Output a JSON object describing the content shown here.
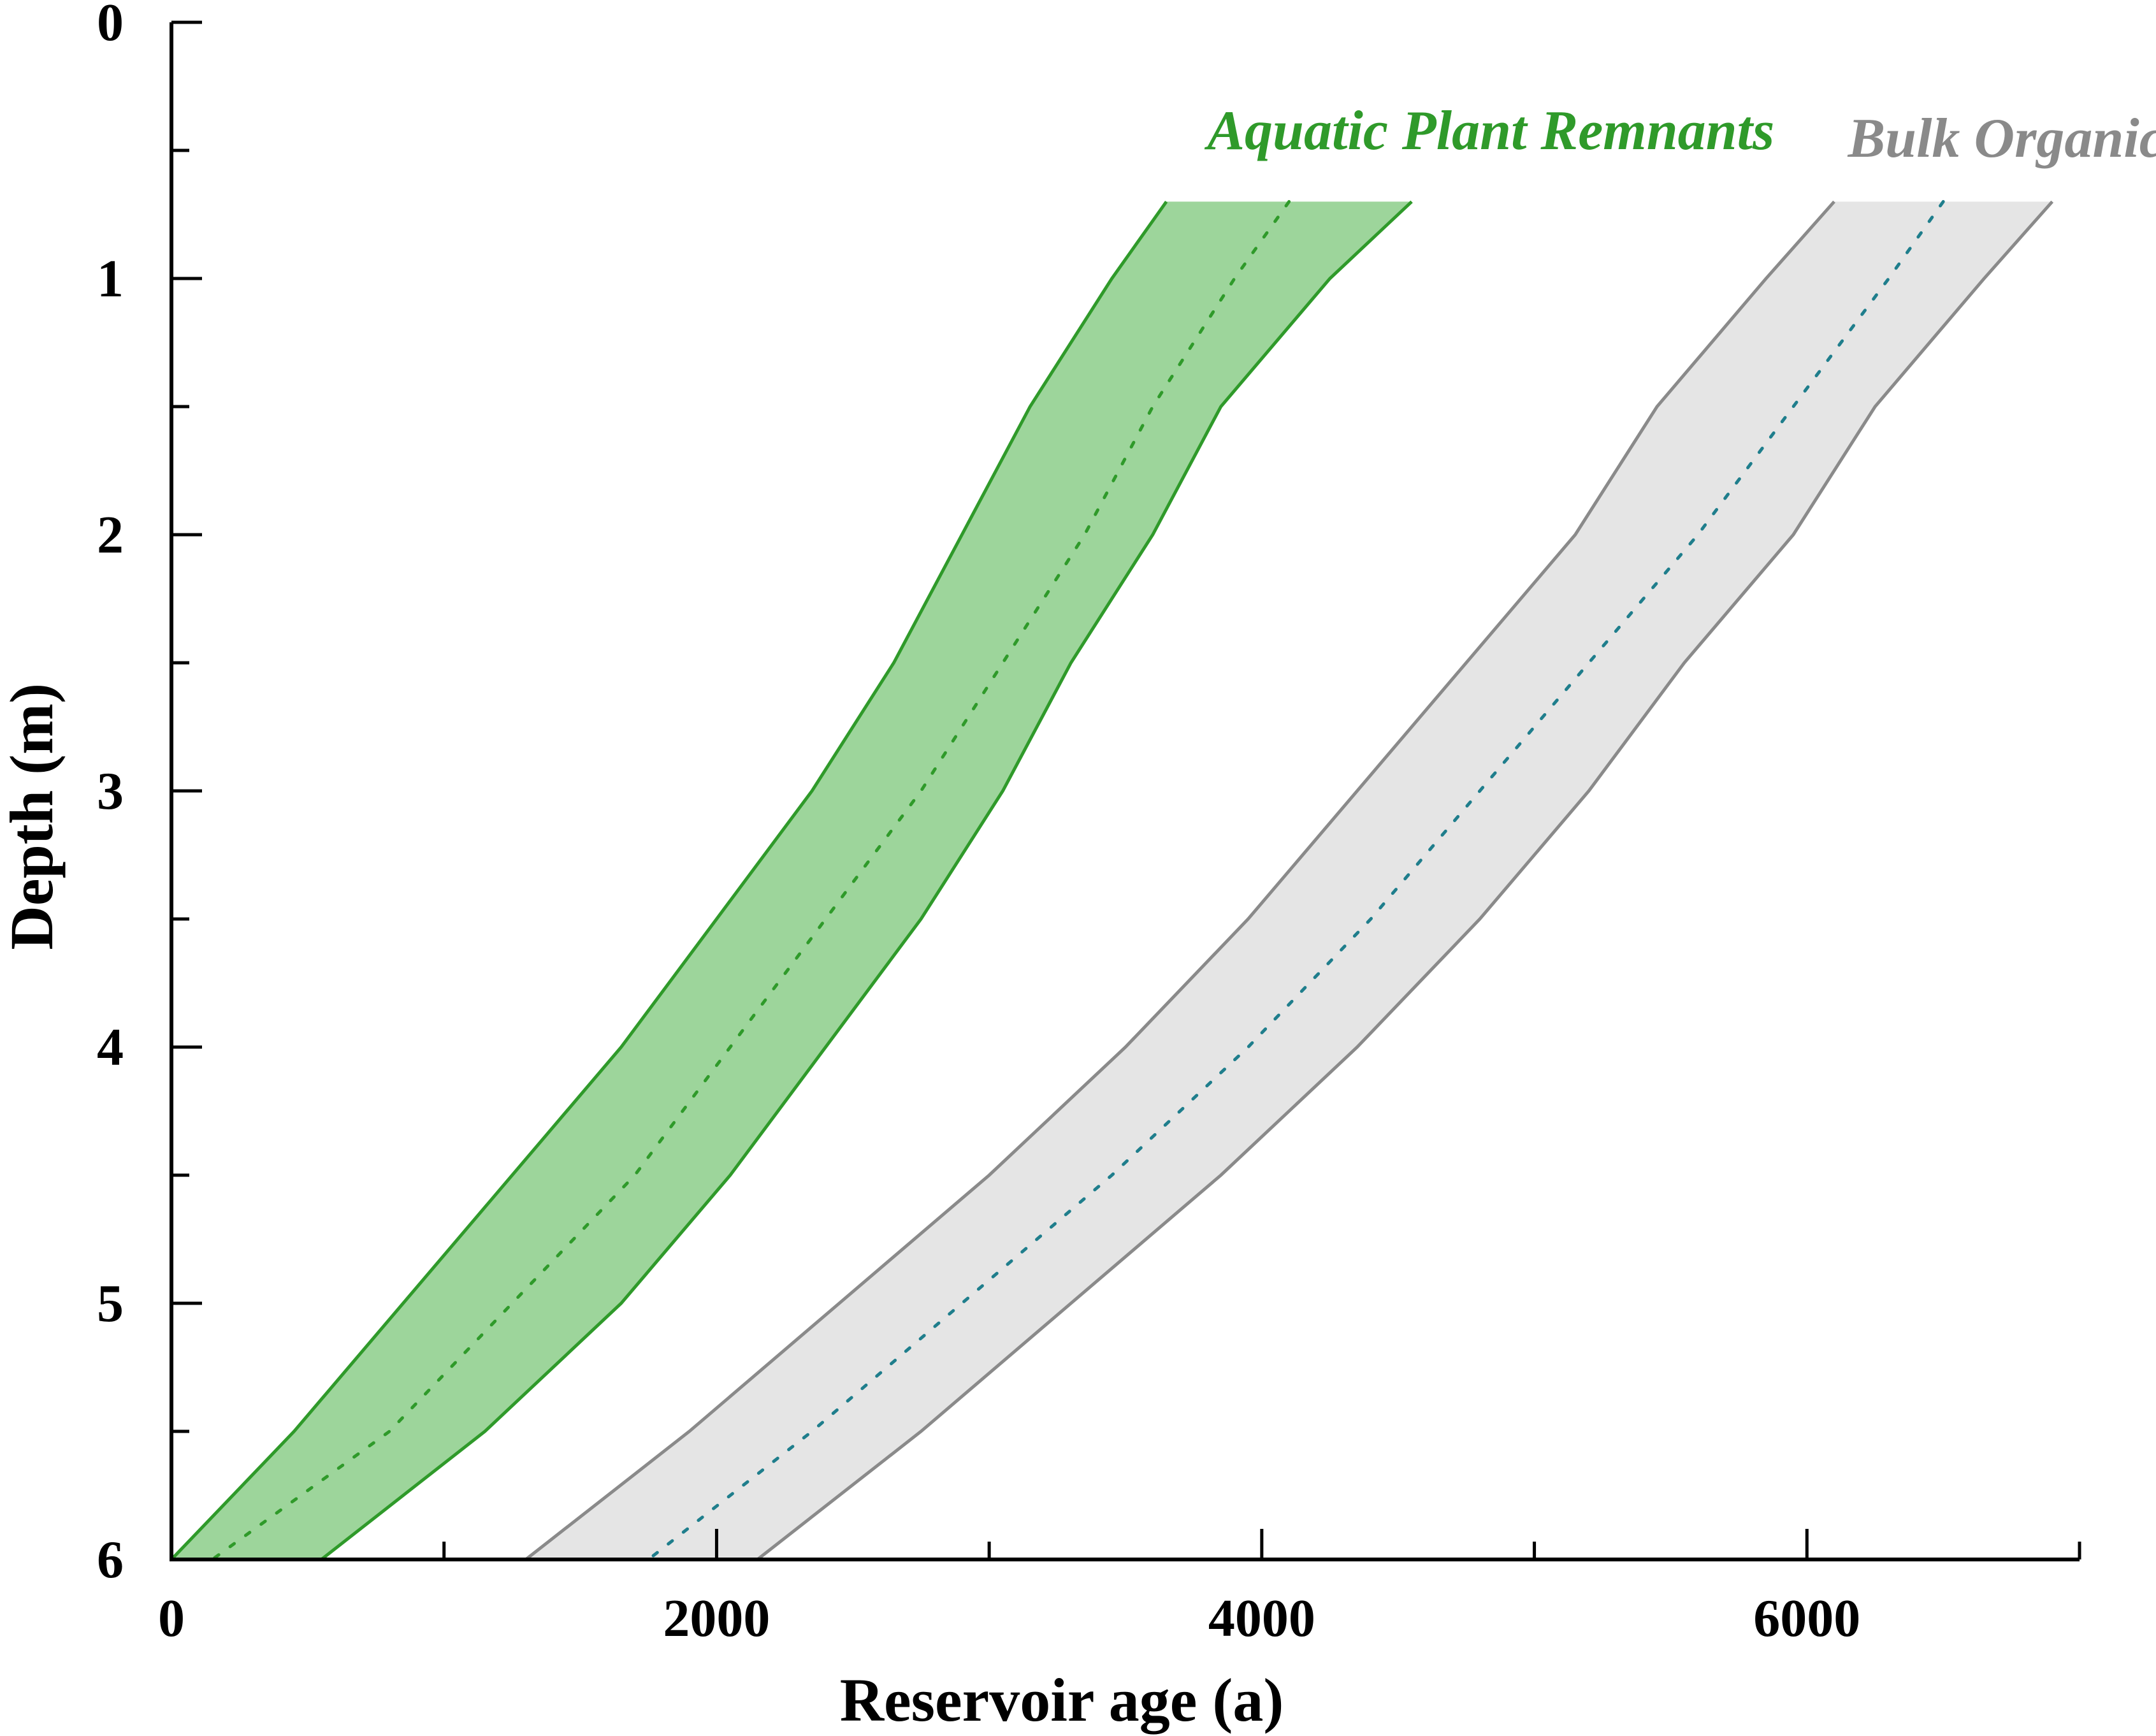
{
  "chart_data": {
    "type": "area",
    "xlabel": "Reservoir age (a)",
    "ylabel": "Depth (m)",
    "xlim": [
      0,
      7000
    ],
    "ylim": [
      0,
      6
    ],
    "y_inverted": true,
    "xticks": [
      0,
      2000,
      4000,
      6000
    ],
    "yticks": [
      0,
      1,
      2,
      3,
      4,
      5,
      6
    ],
    "series": [
      {
        "name": "Aquatic Plant Remnants",
        "fill": "#9dd59b",
        "line": "#2f9a2a",
        "mid": "#2f9a2a",
        "label_pos": [
          3800,
          0.42
        ],
        "depth": [
          0.7,
          1.0,
          1.5,
          2.0,
          2.5,
          3.0,
          3.5,
          4.0,
          4.5,
          5.0,
          5.5,
          6.0
        ],
        "lower": [
          3650,
          3450,
          3150,
          2900,
          2650,
          2350,
          2000,
          1650,
          1250,
          850,
          450,
          0
        ],
        "median": [
          4100,
          3900,
          3600,
          3350,
          3050,
          2750,
          2400,
          2050,
          1700,
          1250,
          800,
          150
        ],
        "upper": [
          4550,
          4250,
          3850,
          3600,
          3300,
          3050,
          2750,
          2400,
          2050,
          1650,
          1150,
          550
        ]
      },
      {
        "name": "Bulk Organic Matter",
        "fill": "#e5e5e5",
        "line": "#8a8a8a",
        "mid": "#1f7e8c",
        "label_pos": [
          6150,
          0.45
        ],
        "depth": [
          0.7,
          1.0,
          1.5,
          2.0,
          2.5,
          3.0,
          3.5,
          4.0,
          4.5,
          5.0,
          5.5,
          6.0
        ],
        "lower": [
          6100,
          5850,
          5450,
          5150,
          4750,
          4350,
          3950,
          3500,
          3000,
          2450,
          1900,
          1300
        ],
        "median": [
          6500,
          6300,
          5950,
          5600,
          5200,
          4800,
          4400,
          3950,
          3450,
          2900,
          2350,
          1750
        ],
        "upper": [
          6900,
          6650,
          6250,
          5950,
          5550,
          5200,
          4800,
          4350,
          3850,
          3300,
          2750,
          2150
        ]
      }
    ],
    "grid": false,
    "legend": "none"
  }
}
